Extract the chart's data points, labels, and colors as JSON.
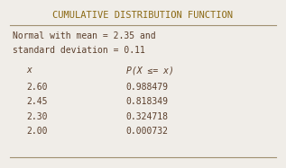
{
  "title": "CUMULATIVE DISTRIBUTION FUNCTION",
  "subtitle_line1": "Normal with mean = 2.35 and",
  "subtitle_line2": "standard deviation = 0.11",
  "col_header_x": "x",
  "col_header_p": "P(X ≤= x)",
  "x_values": [
    "2.60",
    "2.45",
    "2.30",
    "2.00"
  ],
  "p_values": [
    "0.988479",
    "0.818349",
    "0.324718",
    "0.000732"
  ],
  "bg_color": "#f0ede8",
  "text_color": "#5a3e2b",
  "title_color": "#8b6914",
  "font_family": "monospace",
  "line_color": "#a09070"
}
